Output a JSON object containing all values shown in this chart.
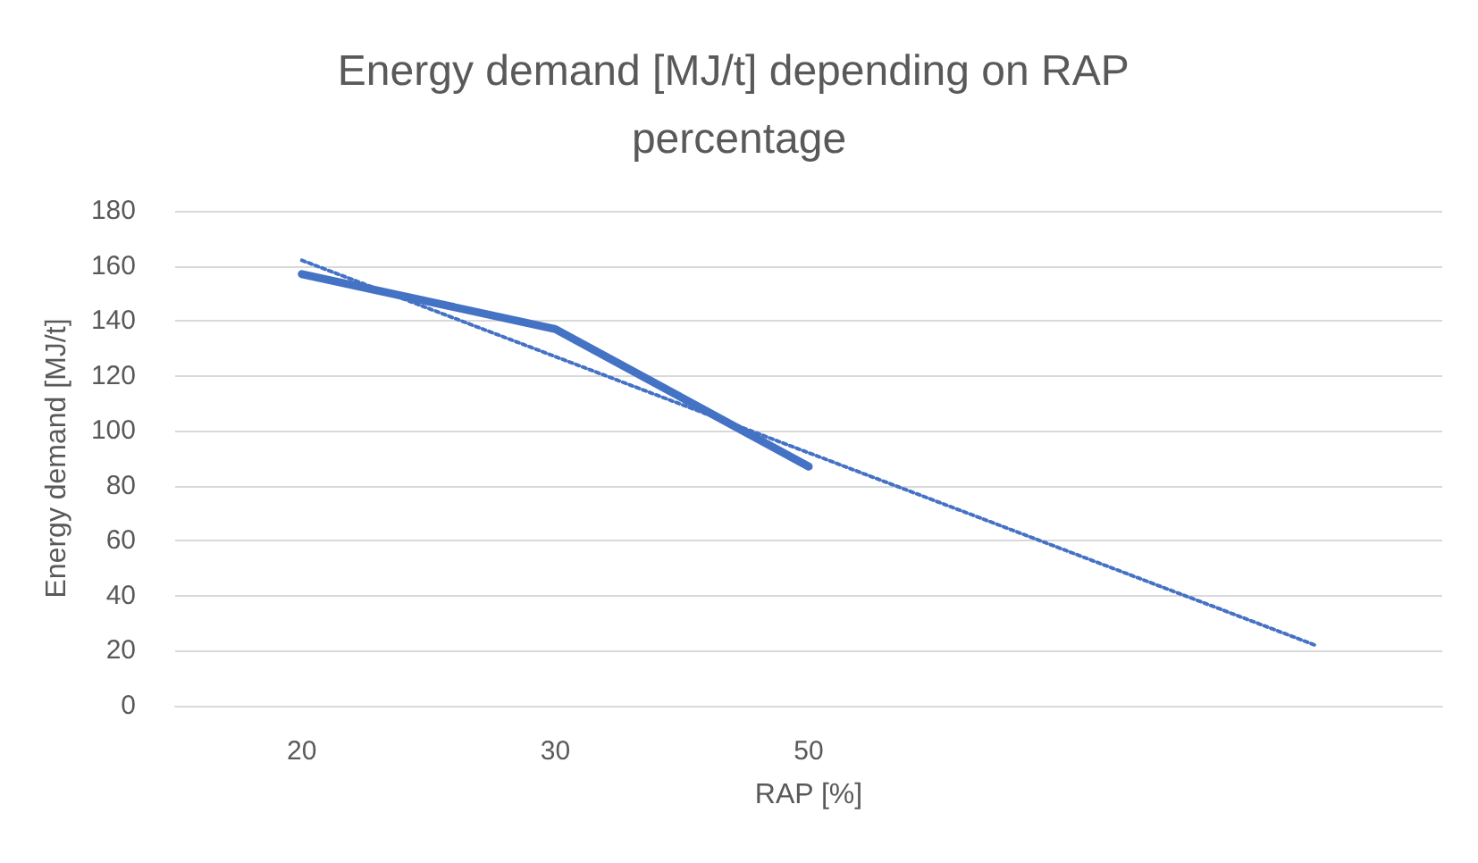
{
  "chart_data": {
    "type": "line",
    "title": "Energy demand [MJ/t] depending on RAP percentage",
    "xlabel": "RAP [%]",
    "ylabel": "Energy demand [MJ/t]",
    "categories": [
      "20",
      "30",
      "50",
      null,
      null
    ],
    "series": [
      {
        "color": "#4472c4",
        "values": [
          157,
          137,
          87,
          null,
          null
        ],
        "line_style": "solid"
      },
      {
        "color": "#4472c4",
        "values": [
          162,
          127,
          92,
          57,
          22
        ],
        "line_style": "dotted"
      }
    ],
    "ylim": [
      0,
      180
    ],
    "yticks": [
      0,
      20,
      40,
      60,
      80,
      100,
      120,
      140,
      160,
      180
    ],
    "grid": "y",
    "marker": "none"
  }
}
